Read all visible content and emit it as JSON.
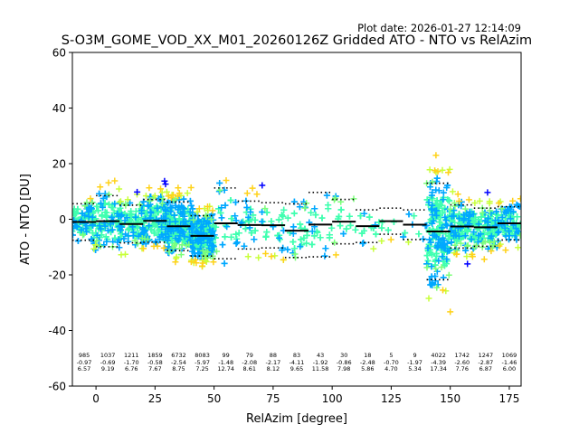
{
  "plot_date": "Plot date: 2026-01-27 12:14:09",
  "chart_data": {
    "type": "scatter",
    "title": "S-O3M_GOME_VOD_XX_M01_20260126Z Gridded ATO - NTO vs RelAzim",
    "xlabel": "RelAzim [degree]",
    "ylabel": "ATO - NTO [DU]",
    "xlim": [
      -10,
      180
    ],
    "ylim": [
      -60,
      60
    ],
    "xticks": [
      0,
      25,
      50,
      75,
      100,
      125,
      150,
      175
    ],
    "yticks": [
      -60,
      -40,
      -20,
      0,
      20,
      40,
      60
    ],
    "grid": false,
    "point_colors": [
      "#40ffb0",
      "#40ffb0",
      "#40ffb0",
      "#00a8ff",
      "#00a8ff",
      "#7dff7a",
      "#c8ff3a",
      "#ffd21a",
      "#0000ff"
    ],
    "bins": [
      {
        "x": -5,
        "n": "985",
        "mean": "-0.97",
        "std": "6.57",
        "m": -0.97,
        "s": 6.57
      },
      {
        "x": 5,
        "n": "1037",
        "mean": "-0.69",
        "std": "9.19",
        "m": -0.69,
        "s": 9.19
      },
      {
        "x": 15,
        "n": "1211",
        "mean": "-1.70",
        "std": "6.76",
        "m": -1.7,
        "s": 6.76
      },
      {
        "x": 25,
        "n": "1859",
        "mean": "-0.58",
        "std": "7.67",
        "m": -0.58,
        "s": 7.67
      },
      {
        "x": 35,
        "n": "6732",
        "mean": "-2.54",
        "std": "8.75",
        "m": -2.54,
        "s": 8.75
      },
      {
        "x": 45,
        "n": "8083",
        "mean": "-5.97",
        "std": "7.25",
        "m": -5.97,
        "s": 7.25
      },
      {
        "x": 55,
        "n": "99",
        "mean": "-1.48",
        "std": "12.74",
        "m": -1.48,
        "s": 12.74
      },
      {
        "x": 65,
        "n": "79",
        "mean": "-2.08",
        "std": "8.61",
        "m": -2.08,
        "s": 8.61
      },
      {
        "x": 75,
        "n": "88",
        "mean": "-2.17",
        "std": "8.12",
        "m": -2.17,
        "s": 8.12
      },
      {
        "x": 85,
        "n": "83",
        "mean": "-4.11",
        "std": "9.65",
        "m": -4.11,
        "s": 9.65
      },
      {
        "x": 95,
        "n": "43",
        "mean": "-1.92",
        "std": "11.58",
        "m": -1.92,
        "s": 11.58
      },
      {
        "x": 105,
        "n": "30",
        "mean": "-0.86",
        "std": "7.98",
        "m": -0.86,
        "s": 7.98
      },
      {
        "x": 115,
        "n": "18",
        "mean": "-2.48",
        "std": "5.86",
        "m": -2.48,
        "s": 5.86
      },
      {
        "x": 125,
        "n": "5",
        "mean": "-0.70",
        "std": "4.70",
        "m": -0.7,
        "s": 4.7
      },
      {
        "x": 135,
        "n": "9",
        "mean": "-1.97",
        "std": "5.34",
        "m": -1.97,
        "s": 5.34
      },
      {
        "x": 145,
        "n": "4022",
        "mean": "-4.39",
        "std": "17.34",
        "m": -4.39,
        "s": 17.34
      },
      {
        "x": 155,
        "n": "1742",
        "mean": "-2.60",
        "std": "7.76",
        "m": -2.6,
        "s": 7.76
      },
      {
        "x": 165,
        "n": "1247",
        "mean": "-2.87",
        "std": "6.87",
        "m": -2.87,
        "s": 6.87
      },
      {
        "x": 175,
        "n": "1069",
        "mean": "-1.46",
        "std": "6.00",
        "m": -1.46,
        "s": 6.0
      }
    ]
  }
}
